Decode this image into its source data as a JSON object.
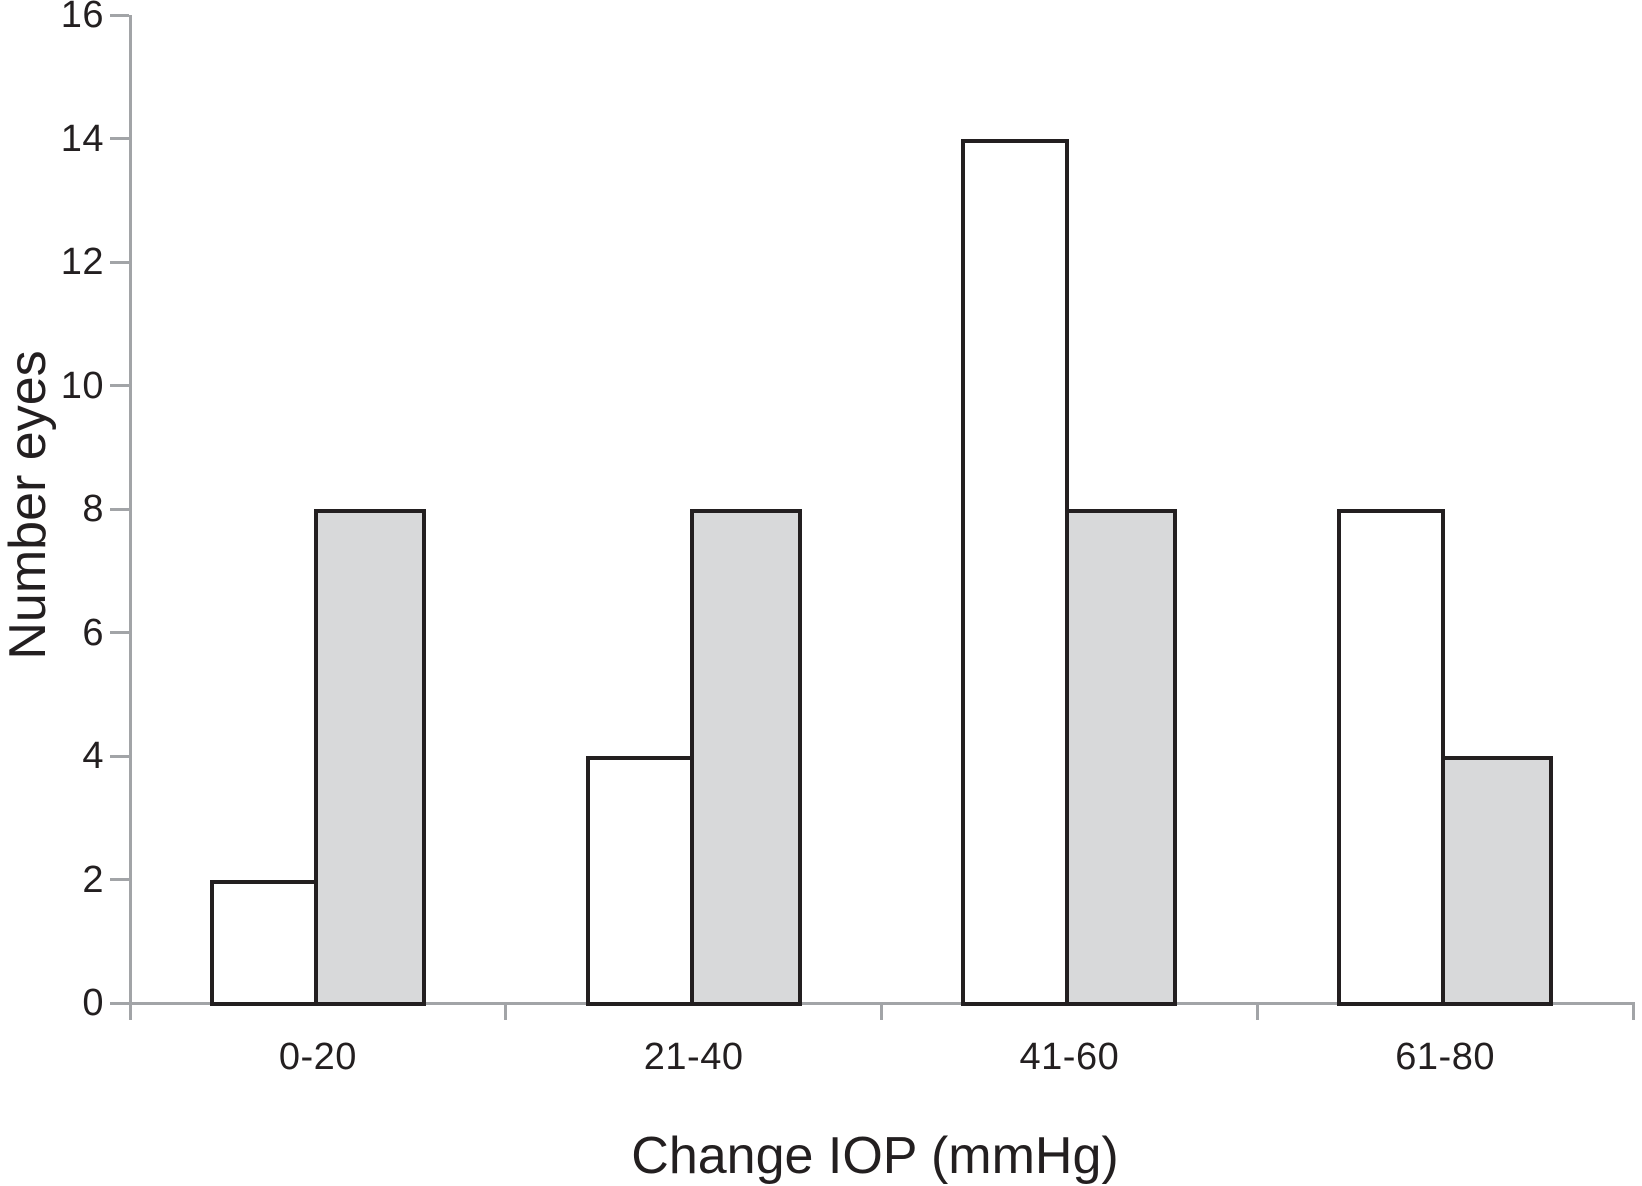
{
  "chart_data": {
    "type": "bar",
    "title": "",
    "categories": [
      "0-20",
      "21-40",
      "41-60",
      "61-80"
    ],
    "series": [
      {
        "name": "white",
        "fill": "#ffffff",
        "values": [
          2,
          4,
          14,
          8
        ]
      },
      {
        "name": "gray",
        "fill": "#d8d9da",
        "values": [
          8,
          8,
          8,
          4
        ]
      }
    ],
    "xlabel": "Change IOP (mmHg)",
    "ylabel": "Number eyes",
    "ylim": [
      0,
      16
    ],
    "yticks": [
      0,
      2,
      4,
      6,
      8,
      10,
      12,
      14,
      16
    ],
    "grid": false,
    "legend": "none",
    "colors": {
      "bar_border": "#231f20",
      "axis": "#a2a4a7",
      "text": "#231f20",
      "background": "#ffffff"
    }
  }
}
